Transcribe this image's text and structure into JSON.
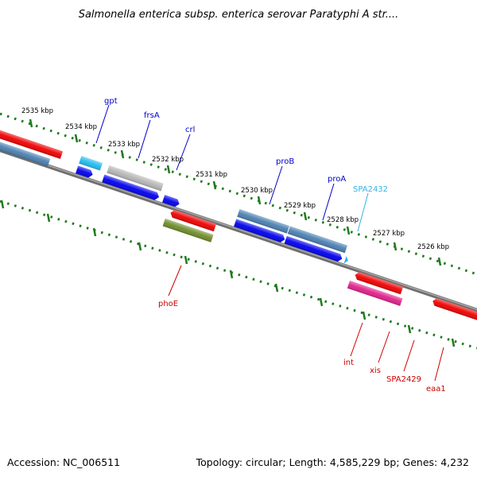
{
  "title": "Salmonella enterica subsp. enterica serovar Paratyphi A str....",
  "footer": {
    "accession": "Accession: NC_006511",
    "summary": "Topology: circular; Length: 4,585,229 bp; Genes: 4,232"
  },
  "colors": {
    "backbone": "#808080",
    "ticks": "#1f7a1f",
    "label_top": "#0000cc",
    "label_bottom": "#cc0000",
    "label_rna": "#33b5e5",
    "feature_red": "#ee0000",
    "feature_blue": "#0000ee",
    "feature_steel": "#4a7fb0",
    "feature_cyan": "#22bbee",
    "feature_gray": "#b5b5b5",
    "feature_olive": "#6e8b2a",
    "feature_magenta": "#e0208a"
  },
  "scale_labels": [
    "2535 kbp",
    "2534 kbp",
    "2533 kbp",
    "2532 kbp",
    "2531 kbp",
    "2530 kbp",
    "2529 kbp",
    "2528 kbp",
    "2527 kbp",
    "2526 kbp"
  ],
  "genes_top": [
    {
      "name": "gpt",
      "color": "label_top"
    },
    {
      "name": "frsA",
      "color": "label_top"
    },
    {
      "name": "crl",
      "color": "label_top"
    },
    {
      "name": "proB",
      "color": "label_top"
    },
    {
      "name": "proA",
      "color": "label_top"
    },
    {
      "name": "SPA2432",
      "color": "label_rna"
    }
  ],
  "genes_bottom": [
    {
      "name": "phoE",
      "color": "label_bottom"
    },
    {
      "name": "int",
      "color": "label_bottom"
    },
    {
      "name": "xis",
      "color": "label_bottom"
    },
    {
      "name": "SPA2429",
      "color": "label_bottom"
    },
    {
      "name": "eaa1",
      "color": "label_bottom"
    }
  ]
}
